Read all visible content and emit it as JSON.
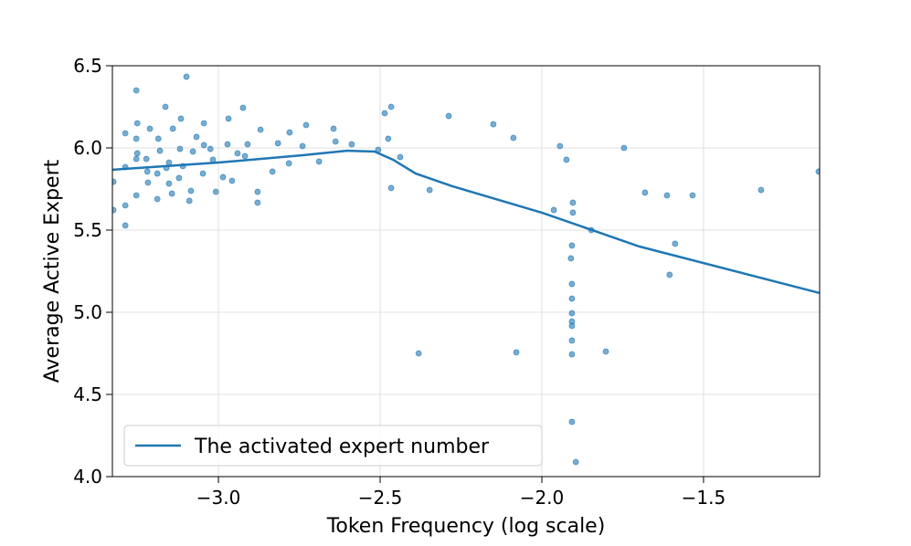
{
  "chart_data": {
    "type": "scatter",
    "xlabel": "Token Frequency (log scale)",
    "ylabel": "Average Active Expert",
    "xlim": [
      -3.328,
      -1.141
    ],
    "ylim": [
      4.0,
      6.5
    ],
    "xticks": [
      {
        "value": -3.0,
        "label": "−3.0"
      },
      {
        "value": -2.5,
        "label": "−2.5"
      },
      {
        "value": -2.0,
        "label": "−2.0"
      },
      {
        "value": -1.5,
        "label": "−1.5"
      }
    ],
    "yticks": [
      {
        "value": 4.0,
        "label": "4.0"
      },
      4.5,
      {
        "value": 5.0,
        "label": "5.0"
      },
      5.5,
      {
        "value": 6.0,
        "label": "6.0"
      },
      6.5
    ],
    "grid": true,
    "legend": "lower left",
    "scatter": {
      "color": "#1f77b4",
      "x": [
        -3.099,
        -3.254,
        -3.164,
        -2.924,
        -2.466,
        -2.288,
        -2.15,
        -2.088,
        -1.944,
        -1.924,
        -1.746,
        -2.347,
        -2.466,
        -1.963,
        -1.904,
        -1.904,
        -1.847,
        -1.681,
        -1.613,
        -1.534,
        -1.322,
        -1.144,
        -1.588,
        -1.605,
        -1.907,
        -1.91,
        -1.907,
        -1.907,
        -1.907,
        -1.907,
        -1.907,
        -1.907,
        -1.907,
        -1.907,
        -1.895,
        -2.381,
        -2.079,
        -1.802,
        -2.486,
        -2.475,
        -2.438,
        -2.506,
        -2.588,
        -2.638,
        -2.644,
        -2.689,
        -2.729,
        -2.74,
        -2.78,
        -2.782,
        -2.816,
        -2.833,
        -2.87,
        -2.879,
        -2.879,
        -2.91,
        -2.918,
        -2.941,
        -2.969,
        -2.972,
        -2.958,
        -2.986,
        -3.008,
        -3.017,
        -3.045,
        -3.045,
        -3.048,
        -3.079,
        -3.085,
        -3.09,
        -3.116,
        -3.119,
        -3.122,
        -3.141,
        -3.144,
        -3.153,
        -3.186,
        -3.189,
        -3.189,
        -3.212,
        -3.218,
        -3.251,
        -3.254,
        -3.254,
        -3.254,
        -3.288,
        -3.288,
        -3.288,
        -3.288,
        -3.325,
        -3.325,
        -3.223,
        -3.181,
        -3.161,
        -3.11,
        -3.025,
        -3.068,
        -3.251,
        -3.22,
        -3.153
      ],
      "y": [
        6.433,
        6.35,
        6.25,
        6.244,
        6.25,
        6.194,
        6.144,
        6.061,
        6.011,
        5.928,
        6.0,
        5.744,
        5.756,
        5.622,
        5.667,
        5.606,
        5.5,
        5.728,
        5.711,
        5.711,
        5.744,
        5.856,
        5.417,
        5.228,
        5.406,
        5.328,
        5.172,
        5.083,
        4.994,
        4.944,
        4.917,
        4.828,
        4.744,
        4.333,
        4.089,
        4.75,
        4.756,
        4.761,
        6.211,
        6.056,
        5.944,
        5.989,
        6.022,
        6.039,
        6.117,
        5.917,
        6.139,
        6.011,
        6.094,
        5.906,
        6.028,
        5.856,
        6.111,
        5.667,
        5.733,
        6.022,
        5.95,
        5.967,
        6.178,
        6.022,
        5.8,
        5.822,
        5.733,
        5.928,
        6.15,
        6.017,
        5.844,
        5.978,
        5.739,
        5.678,
        6.178,
        5.994,
        5.817,
        6.117,
        5.722,
        5.911,
        6.056,
        5.844,
        5.689,
        6.117,
        5.789,
        6.15,
        6.056,
        5.933,
        5.711,
        6.089,
        5.883,
        5.65,
        5.528,
        5.794,
        5.622,
        5.933,
        5.983,
        5.878,
        5.889,
        5.994,
        6.067,
        5.967,
        5.856,
        5.783
      ]
    },
    "line": {
      "name": "The activated expert number",
      "color": "#1f77b4",
      "x": [
        -3.328,
        -3.0,
        -2.743,
        -2.6,
        -2.517,
        -2.46,
        -2.39,
        -2.277,
        -2.0,
        -1.698,
        -1.141
      ],
      "values": [
        5.867,
        5.911,
        5.955,
        5.983,
        5.978,
        5.928,
        5.844,
        5.767,
        5.606,
        5.4,
        5.117
      ]
    }
  }
}
